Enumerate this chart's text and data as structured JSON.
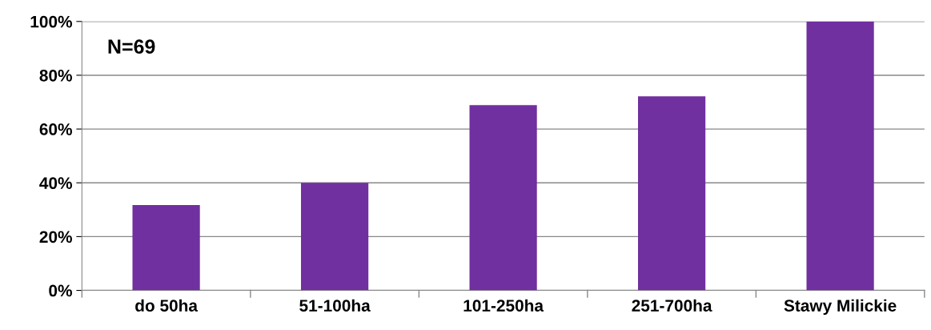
{
  "chart_data": {
    "type": "bar",
    "categories": [
      "do 50ha",
      "51-100ha",
      "101-250ha",
      "251-700ha",
      "Stawy Milickie"
    ],
    "values": [
      31.7,
      40,
      68.9,
      72.2,
      100
    ],
    "color": "#7030a0",
    "ylim": [
      0,
      100
    ],
    "yticks": [
      {
        "value": 0,
        "label": "0%"
      },
      {
        "value": 20,
        "label": "20%"
      },
      {
        "value": 40,
        "label": "40%"
      },
      {
        "value": 60,
        "label": "60%"
      },
      {
        "value": 80,
        "label": "80%"
      },
      {
        "value": 100,
        "label": "100%"
      }
    ],
    "grid": "y",
    "legend": false,
    "annotations": [
      "N=69"
    ]
  }
}
